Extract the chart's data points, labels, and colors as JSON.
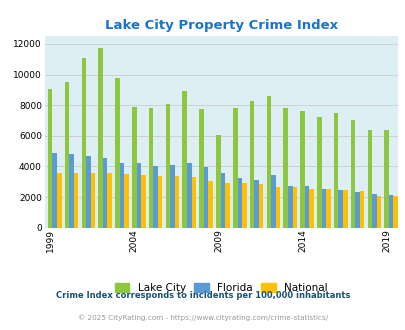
{
  "title": "Lake City Property Crime Index",
  "title_color": "#1874CD",
  "bar_color_lakecity": "#8dc63f",
  "bar_color_florida": "#5b9bd5",
  "bar_color_national": "#ffc000",
  "background_color": "#ddeef4",
  "ylim": [
    0,
    12500
  ],
  "yticks": [
    0,
    2000,
    4000,
    6000,
    8000,
    10000,
    12000
  ],
  "lake_city": [
    9050,
    9500,
    11100,
    11750,
    9800,
    7900,
    7850,
    8050,
    8900,
    7750,
    6050,
    7800,
    8250,
    8600,
    7800,
    7600,
    7200,
    7500,
    7050,
    6350,
    6400
  ],
  "florida": [
    4900,
    4800,
    4650,
    4550,
    4250,
    4200,
    4050,
    4100,
    4200,
    3950,
    3600,
    3250,
    3100,
    3450,
    2750,
    2700,
    2550,
    2450,
    2300,
    2200,
    2150
  ],
  "national": [
    3600,
    3600,
    3600,
    3600,
    3500,
    3450,
    3400,
    3350,
    3300,
    3050,
    2950,
    2900,
    2850,
    2650,
    2650,
    2550,
    2500,
    2450,
    2400,
    2100,
    2100
  ],
  "xtick_positions": [
    0,
    5,
    10,
    15,
    20
  ],
  "xtick_labels": [
    "1999",
    "2004",
    "2009",
    "2014",
    "2019"
  ],
  "note_text": "Crime Index corresponds to incidents per 100,000 inhabitants",
  "note_color": "#1a5276",
  "copyright_text": "© 2025 CityRating.com - https://www.cityrating.com/crime-statistics/",
  "copyright_color": "#999999",
  "grid_color": "#cccccc",
  "legend_labels": [
    "Lake City",
    "Florida",
    "National"
  ]
}
